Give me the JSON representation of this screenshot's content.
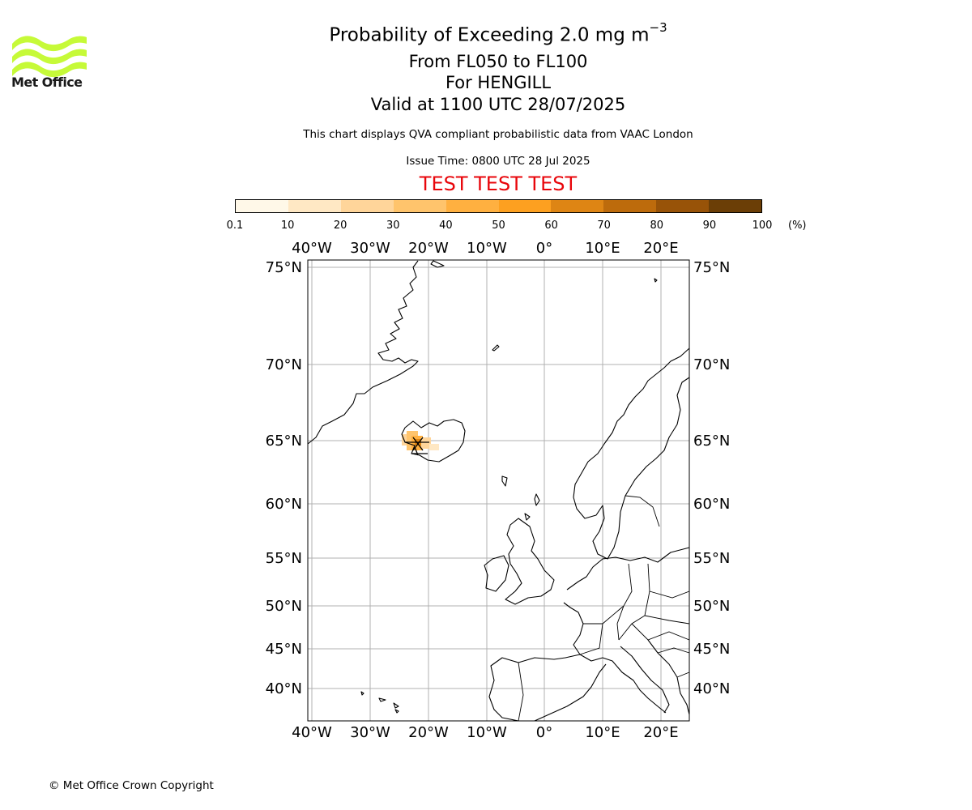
{
  "logo": {
    "text": "Met Office",
    "icon": "met-office-wave-logo",
    "color": "#c6fa38"
  },
  "title": {
    "prefix": "Probability of Exceeding 2.0 mg m",
    "exponent": "−3"
  },
  "line2": "From FL050 to FL100",
  "line3": "For HENGILL",
  "line4": "Valid at 1100 UTC 28/07/2025",
  "note": "This chart displays QVA compliant probabilistic data from VAAC London",
  "issue_time": "Issue Time: 0800 UTC 28 Jul 2025",
  "test_banner": "TEST TEST TEST",
  "test_color": "#e8060b",
  "colorbar": {
    "ticks": [
      "0.1",
      "10",
      "20",
      "30",
      "40",
      "50",
      "60",
      "70",
      "80",
      "90",
      "100"
    ],
    "unit": "(%)",
    "colors": [
      "#fff8e8",
      "#ffe8c4",
      "#ffd59a",
      "#ffc46c",
      "#ffb040",
      "#fda020",
      "#de8514",
      "#bd6b0c",
      "#985308",
      "#6b3e06"
    ]
  },
  "map": {
    "lon_labels": [
      "40°W",
      "30°W",
      "20°W",
      "10°W",
      "0°",
      "10°E",
      "20°E"
    ],
    "lat_labels": [
      "75°N",
      "70°N",
      "65°N",
      "60°N",
      "55°N",
      "50°N",
      "45°N",
      "40°N"
    ],
    "volcano": "HENGILL",
    "grid_color": "#b0b0b0"
  },
  "copyright": "© Met Office Crown Copyright"
}
